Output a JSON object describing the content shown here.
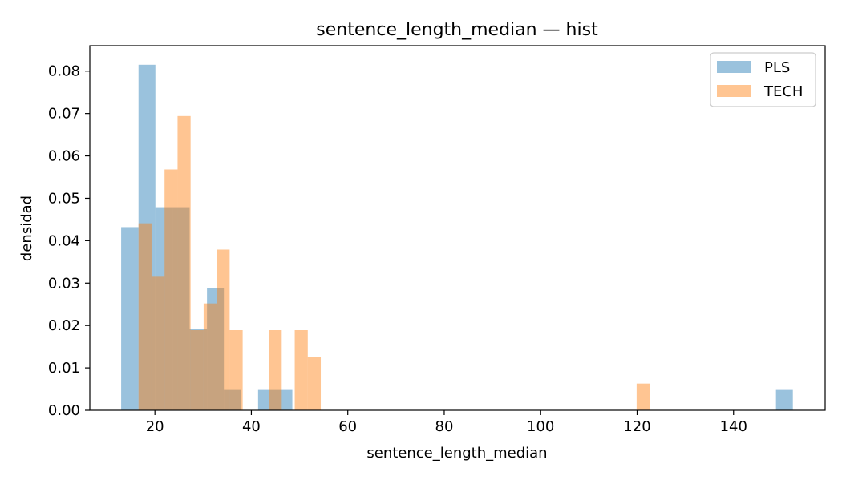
{
  "chart_data": {
    "type": "bar",
    "title": "sentence_length_median — hist",
    "xlabel": "sentence_length_median",
    "ylabel": "densidad",
    "xlim": [
      6.5,
      159
    ],
    "ylim": [
      0,
      0.086
    ],
    "xticks": [
      20,
      40,
      60,
      80,
      100,
      120,
      140
    ],
    "yticks": [
      0.0,
      0.01,
      0.02,
      0.03,
      0.04,
      0.05,
      0.06,
      0.07,
      0.08
    ],
    "xtick_labels": [
      "20",
      "40",
      "60",
      "80",
      "100",
      "120",
      "140"
    ],
    "ytick_labels": [
      "0.00",
      "0.01",
      "0.02",
      "0.03",
      "0.04",
      "0.05",
      "0.06",
      "0.07",
      "0.08"
    ],
    "grid": false,
    "legend_position": "top-right",
    "series": [
      {
        "name": "PLS",
        "color": "#1f77b4",
        "opacity": 0.45,
        "bins": [
          {
            "x0": 13.0,
            "x1": 16.6,
            "density": 0.0432
          },
          {
            "x0": 16.6,
            "x1": 20.1,
            "density": 0.0815
          },
          {
            "x0": 20.1,
            "x1": 23.7,
            "density": 0.0479
          },
          {
            "x0": 23.7,
            "x1": 27.2,
            "density": 0.0479
          },
          {
            "x0": 27.2,
            "x1": 30.8,
            "density": 0.0192
          },
          {
            "x0": 30.8,
            "x1": 34.3,
            "density": 0.0288
          },
          {
            "x0": 34.3,
            "x1": 37.9,
            "density": 0.0048
          },
          {
            "x0": 41.4,
            "x1": 45.0,
            "density": 0.0048
          },
          {
            "x0": 45.0,
            "x1": 48.5,
            "density": 0.0048
          },
          {
            "x0": 148.8,
            "x1": 152.3,
            "density": 0.0048
          }
        ]
      },
      {
        "name": "TECH",
        "color": "#ff7f0e",
        "opacity": 0.45,
        "bins": [
          {
            "x0": 16.6,
            "x1": 19.3,
            "density": 0.0441
          },
          {
            "x0": 19.3,
            "x1": 22.0,
            "density": 0.0315
          },
          {
            "x0": 22.0,
            "x1": 24.7,
            "density": 0.0568
          },
          {
            "x0": 24.7,
            "x1": 27.4,
            "density": 0.0694
          },
          {
            "x0": 27.4,
            "x1": 30.1,
            "density": 0.0189
          },
          {
            "x0": 30.1,
            "x1": 32.8,
            "density": 0.0252
          },
          {
            "x0": 32.8,
            "x1": 35.5,
            "density": 0.0379
          },
          {
            "x0": 35.5,
            "x1": 38.2,
            "density": 0.0189
          },
          {
            "x0": 43.6,
            "x1": 46.3,
            "density": 0.0189
          },
          {
            "x0": 49.0,
            "x1": 51.7,
            "density": 0.0189
          },
          {
            "x0": 51.7,
            "x1": 54.4,
            "density": 0.0126
          },
          {
            "x0": 119.9,
            "x1": 122.6,
            "density": 0.0063
          }
        ]
      }
    ]
  }
}
